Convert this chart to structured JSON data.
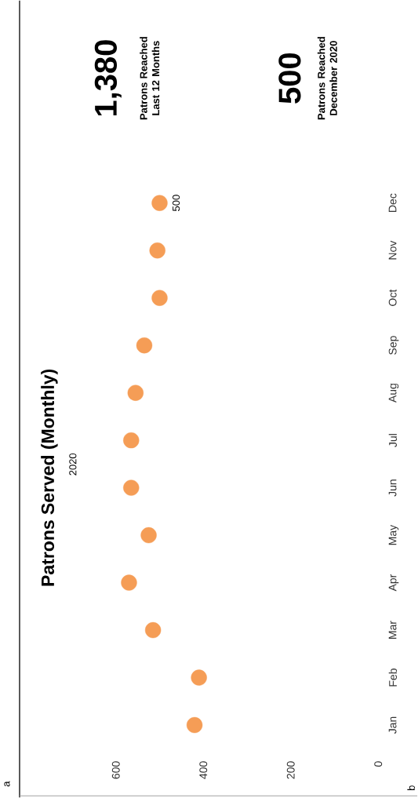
{
  "chart_data": {
    "type": "scatter",
    "orientation": "horizontal",
    "title": "Patrons Served (Monthly)",
    "subtitle": "2020",
    "categories": [
      "Dec",
      "Nov",
      "Oct",
      "Sep",
      "Aug",
      "Jul",
      "Jun",
      "May",
      "Apr",
      "Mar",
      "Feb",
      "Jan"
    ],
    "values": [
      500,
      505,
      500,
      535,
      555,
      565,
      565,
      525,
      570,
      515,
      410,
      420
    ],
    "value_labels": [
      "500",
      null,
      null,
      null,
      null,
      null,
      null,
      null,
      null,
      null,
      null,
      null
    ],
    "color": "#f59d56",
    "marker": "circle",
    "xlim": [
      600,
      0
    ],
    "xticks": [
      0,
      200,
      400,
      600
    ],
    "annotations": [
      "a",
      "b",
      "1,380",
      "Patrons Reached Last 12 Months",
      "500",
      "Patrons Reached December 2020"
    ]
  }
}
